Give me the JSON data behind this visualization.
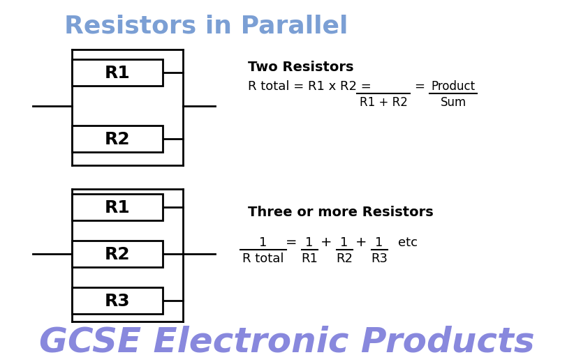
{
  "title": "Resistors in Parallel",
  "title_color": "#7b9fd4",
  "title_fontsize": 26,
  "bg_color": "#ffffff",
  "resistor_box_color": "#000000",
  "wire_color": "#000000",
  "text_color": "#000000",
  "footer_text": "GCSE Electronic Products",
  "footer_color": "#8888dd",
  "footer_fontsize": 36,
  "two_resistors_label": "Two Resistors",
  "three_resistors_label": "Three or more Resistors"
}
